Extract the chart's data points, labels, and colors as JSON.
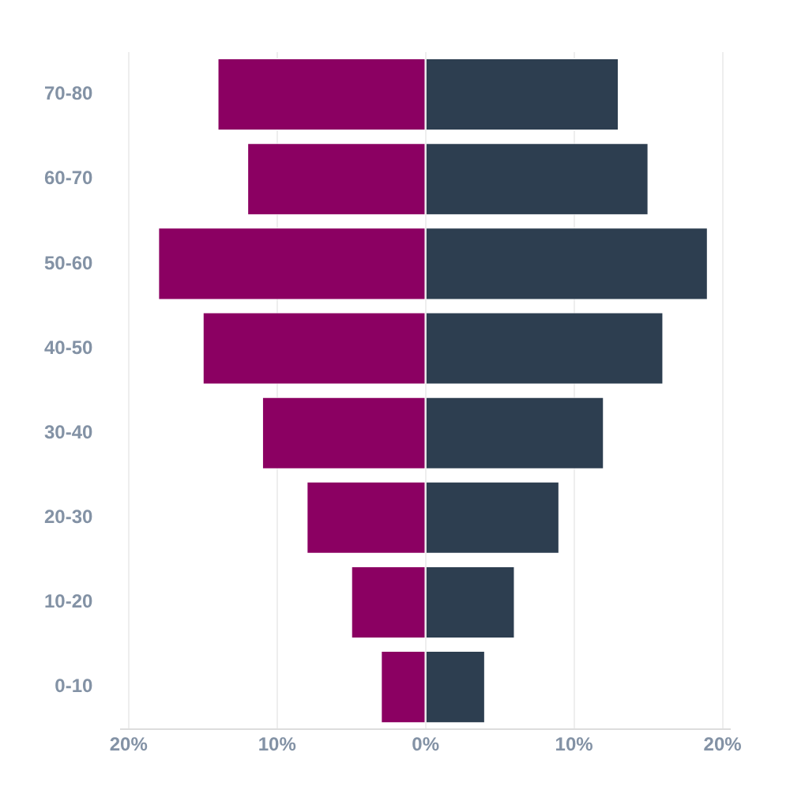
{
  "chart_data": {
    "type": "bar",
    "orientation": "horizontal",
    "stacked": true,
    "categories": [
      "70-80",
      "60-70",
      "50-60",
      "40-50",
      "30-40",
      "20-30",
      "10-20",
      "0-10"
    ],
    "series": [
      {
        "color": "#8b0062",
        "values": [
          -14,
          -12,
          -18,
          -15,
          -11,
          -8,
          -5,
          -3
        ]
      },
      {
        "color": "#2d3e50",
        "values": [
          13,
          15,
          19,
          16,
          12,
          9,
          6,
          4
        ]
      }
    ],
    "xlim": [
      -20.5,
      20.5
    ],
    "xticks": [
      {
        "value": -20,
        "label": "20%"
      },
      {
        "value": -10,
        "label": "10%"
      },
      {
        "value": 0,
        "label": "0%"
      },
      {
        "value": 10,
        "label": "10%"
      },
      {
        "value": 20,
        "label": "20%"
      }
    ],
    "grid": "x",
    "legend": false
  }
}
